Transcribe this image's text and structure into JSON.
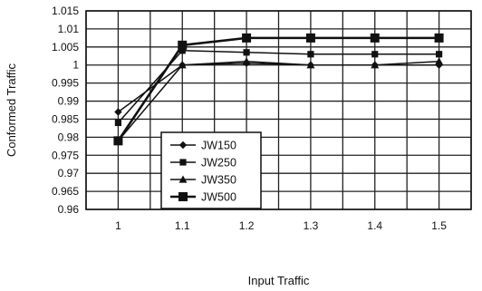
{
  "chart_data": {
    "type": "line",
    "title": "",
    "xlabel": "Input Traffic",
    "ylabel": "Conformed Traffic",
    "x": [
      1,
      1.1,
      1.2,
      1.3,
      1.4,
      1.5
    ],
    "x_tick_labels": [
      "1",
      "1.1",
      "1.2",
      "1.3",
      "1.4",
      "1.5"
    ],
    "y_tick_labels": [
      "1.015",
      "1.01",
      "1.005",
      "1",
      "0.995",
      "0.99",
      "0.985",
      "0.98",
      "0.975",
      "0.97",
      "0.965",
      "0.96"
    ],
    "ylim": [
      0.96,
      1.015
    ],
    "grid": true,
    "legend_position": "bottom-center",
    "series": [
      {
        "name": "JW150",
        "marker": "diamond",
        "values": [
          0.987,
          1.0,
          1.0005,
          1.0,
          1.0,
          1.0
        ]
      },
      {
        "name": "JW250",
        "marker": "square",
        "values": [
          0.984,
          1.004,
          1.0035,
          1.003,
          1.003,
          1.003
        ]
      },
      {
        "name": "JW350",
        "marker": "triangle",
        "values": [
          0.979,
          1.0,
          1.001,
          1.0,
          1.0,
          1.001
        ]
      },
      {
        "name": "JW500",
        "marker": "square-large",
        "values": [
          0.979,
          1.0055,
          1.0075,
          1.0075,
          1.0075,
          1.0075
        ]
      }
    ]
  }
}
